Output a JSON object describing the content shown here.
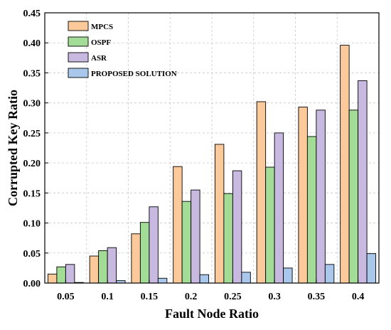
{
  "chart_data": {
    "type": "bar",
    "xlabel": "Fault Node Ratio",
    "ylabel": "Corrupted Key Ratio",
    "ylim": [
      0,
      0.45
    ],
    "yticks": [
      "0.00",
      "0.05",
      "0.10",
      "0.15",
      "0.20",
      "0.25",
      "0.30",
      "0.35",
      "0.40",
      "0.45"
    ],
    "categories": [
      "0.05",
      "0.1",
      "0.15",
      "0.2",
      "0.25",
      "0.3",
      "0.35",
      "0.4"
    ],
    "grid": true,
    "legend_position": "top-left",
    "series": [
      {
        "name": "MPCS",
        "color": "#fcc99a",
        "values": [
          0.015,
          0.045,
          0.082,
          0.194,
          0.231,
          0.302,
          0.293,
          0.396
        ]
      },
      {
        "name": "OSPF",
        "color": "#a3dc97",
        "values": [
          0.027,
          0.054,
          0.101,
          0.136,
          0.149,
          0.193,
          0.244,
          0.288
        ]
      },
      {
        "name": "ASR",
        "color": "#c8b9e1",
        "values": [
          0.031,
          0.059,
          0.127,
          0.155,
          0.187,
          0.25,
          0.288,
          0.337
        ]
      },
      {
        "name": "PROPOSED SOLUTION",
        "color": "#a9c7ea",
        "values": [
          0.001,
          0.004,
          0.008,
          0.014,
          0.018,
          0.025,
          0.031,
          0.049
        ]
      }
    ]
  }
}
